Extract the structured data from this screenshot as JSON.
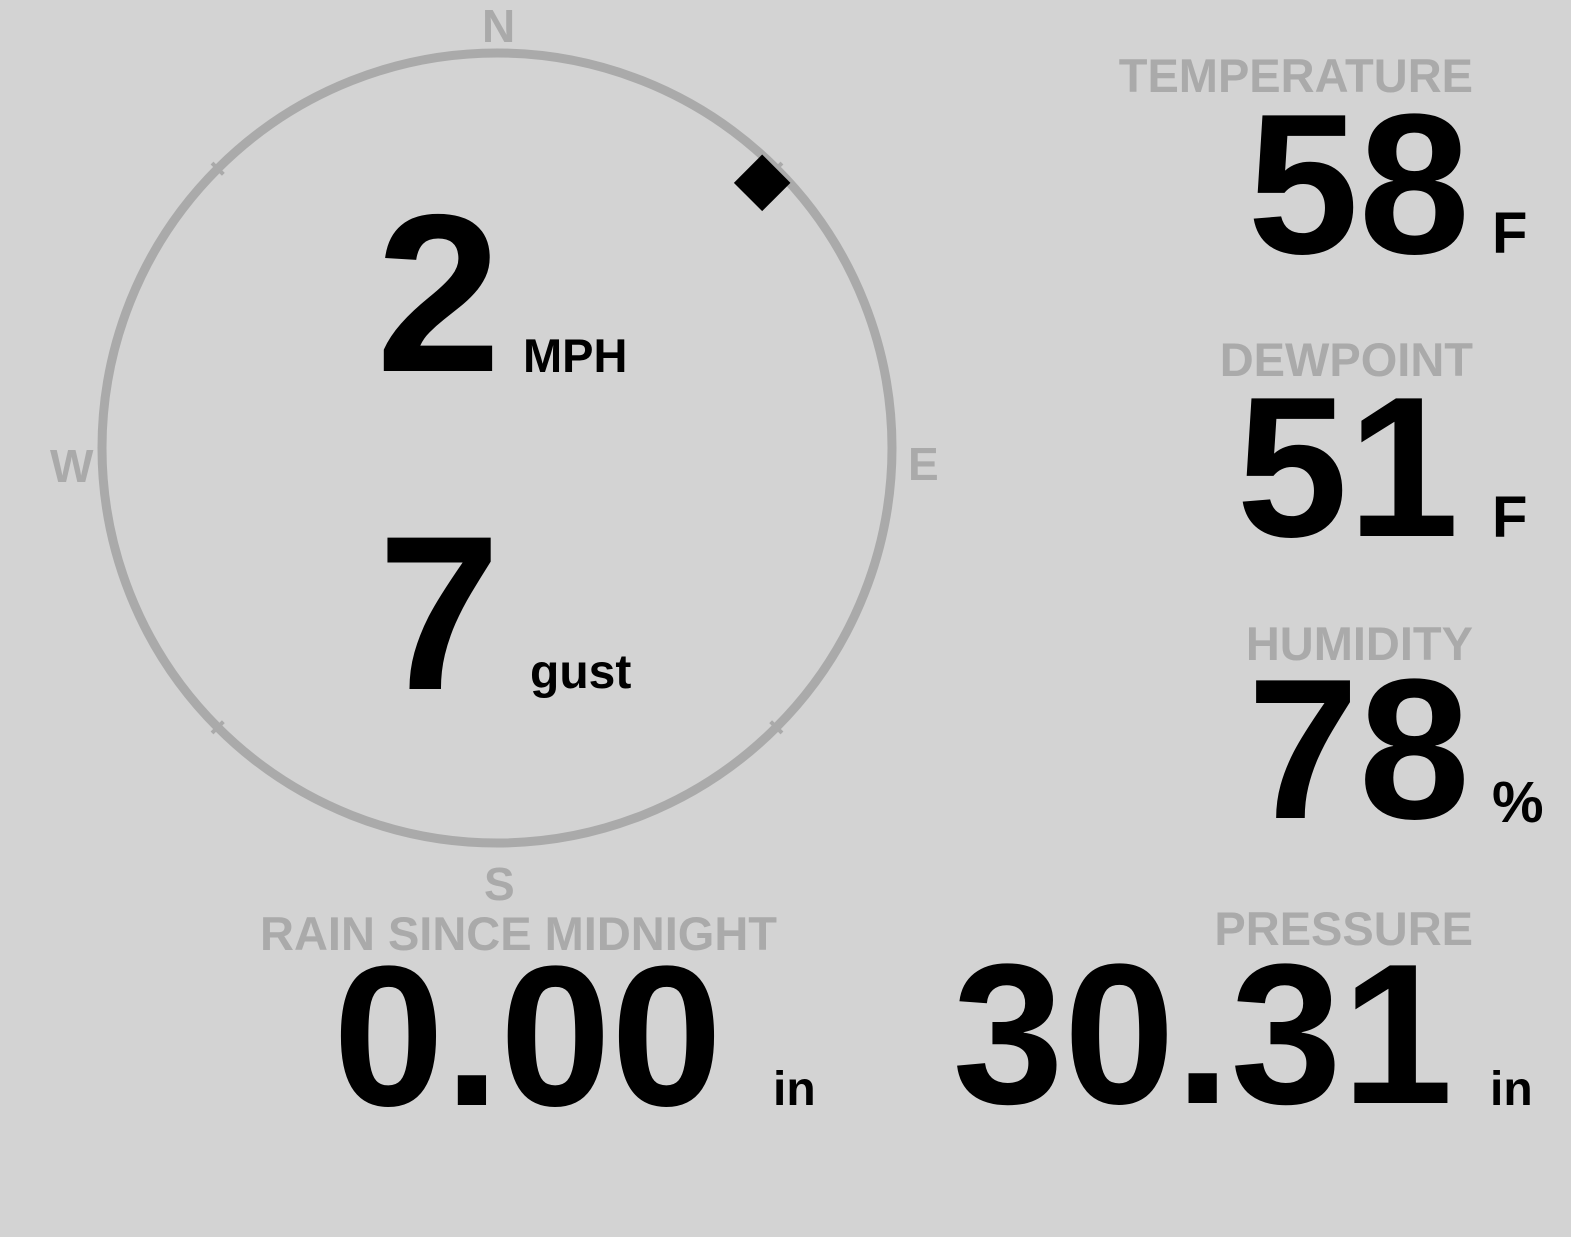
{
  "colors": {
    "background": "#d3d3d3",
    "label": "#aaaaaa",
    "value": "#000000",
    "ring": "#aaaaaa"
  },
  "wind": {
    "compass": {
      "north": "N",
      "east": "E",
      "south": "S",
      "west": "W"
    },
    "direction_degrees": 45,
    "marker_icon": "diamond-icon",
    "speed": "2",
    "speed_unit": "MPH",
    "gust": "7",
    "gust_unit": "gust"
  },
  "temperature": {
    "label": "TEMPERATURE",
    "value": "58",
    "unit": "F"
  },
  "dewpoint": {
    "label": "DEWPOINT",
    "value": "51",
    "unit": "F"
  },
  "humidity": {
    "label": "HUMIDITY",
    "value": "78",
    "unit": "%"
  },
  "pressure": {
    "label": "PRESSURE",
    "value": "30.31",
    "unit": "in"
  },
  "rain": {
    "label": "RAIN SINCE MIDNIGHT",
    "value": "0.00",
    "unit": "in"
  }
}
